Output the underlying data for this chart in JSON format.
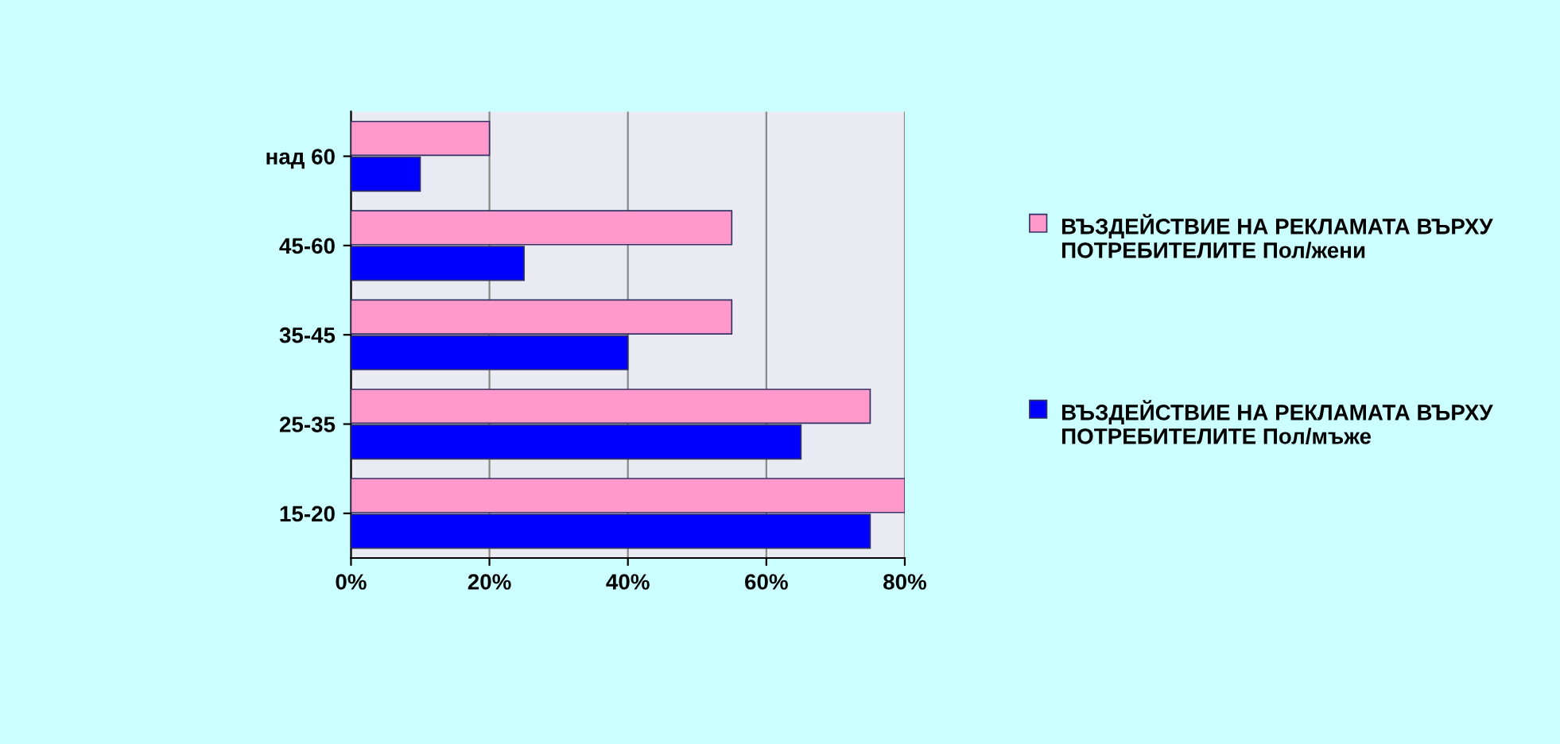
{
  "chart_data": {
    "type": "bar",
    "orientation": "horizontal",
    "categories": [
      "над 60",
      "45-60",
      "35-45",
      "25-35",
      "15-20"
    ],
    "series": [
      {
        "name": "ВЪЗДЕЙСТВИЕ НА РЕКЛАМАТА ВЪРХУ ПОТРЕБИТЕЛИТЕ Пол/жени",
        "color": "#ff99cc",
        "values": [
          20,
          55,
          55,
          75,
          80
        ]
      },
      {
        "name": "ВЪЗДЕЙСТВИЕ НА РЕКЛАМАТА ВЪРХУ ПОТРЕБИТЕЛИТЕ Пол/мъже",
        "color": "#0000ff",
        "values": [
          10,
          25,
          40,
          65,
          75
        ]
      }
    ],
    "xlim": [
      0,
      80
    ],
    "xticks": [
      {
        "value": 0,
        "label": "0%"
      },
      {
        "value": 20,
        "label": "20%"
      },
      {
        "value": 40,
        "label": "40%"
      },
      {
        "value": 60,
        "label": "60%"
      },
      {
        "value": 80,
        "label": "80%"
      }
    ],
    "grid": "x",
    "legend": "right"
  }
}
